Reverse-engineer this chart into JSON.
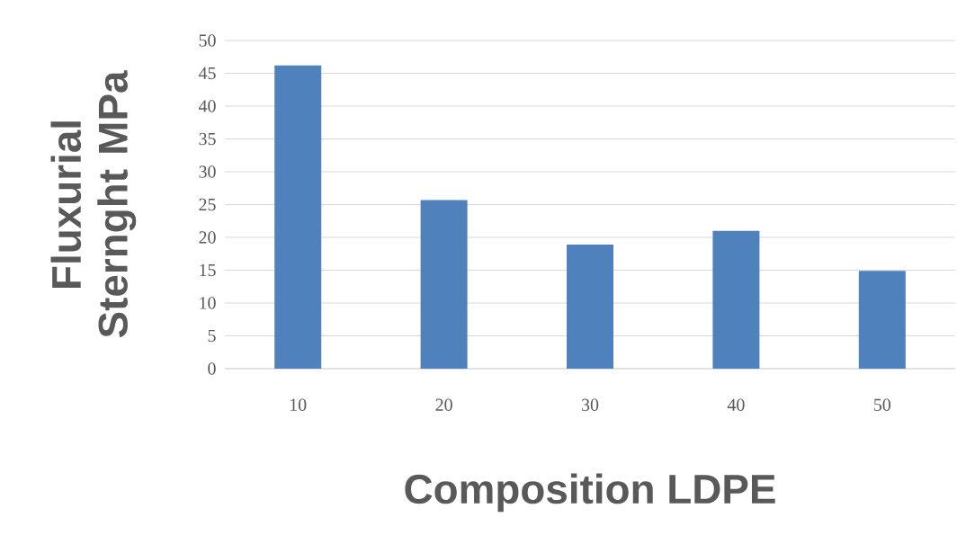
{
  "chart_data": {
    "type": "bar",
    "xlabel": "Composition LDPE",
    "ylabel": "Fluxurial Sternght MPa",
    "categories": [
      "10",
      "20",
      "30",
      "40",
      "50"
    ],
    "values": [
      46.2,
      25.7,
      18.9,
      21.0,
      14.9
    ],
    "color": "#4f81bd",
    "ylim": [
      0,
      50
    ],
    "yticks": [
      0,
      5,
      10,
      15,
      20,
      25,
      30,
      35,
      40,
      45,
      50
    ],
    "grid": "y"
  }
}
